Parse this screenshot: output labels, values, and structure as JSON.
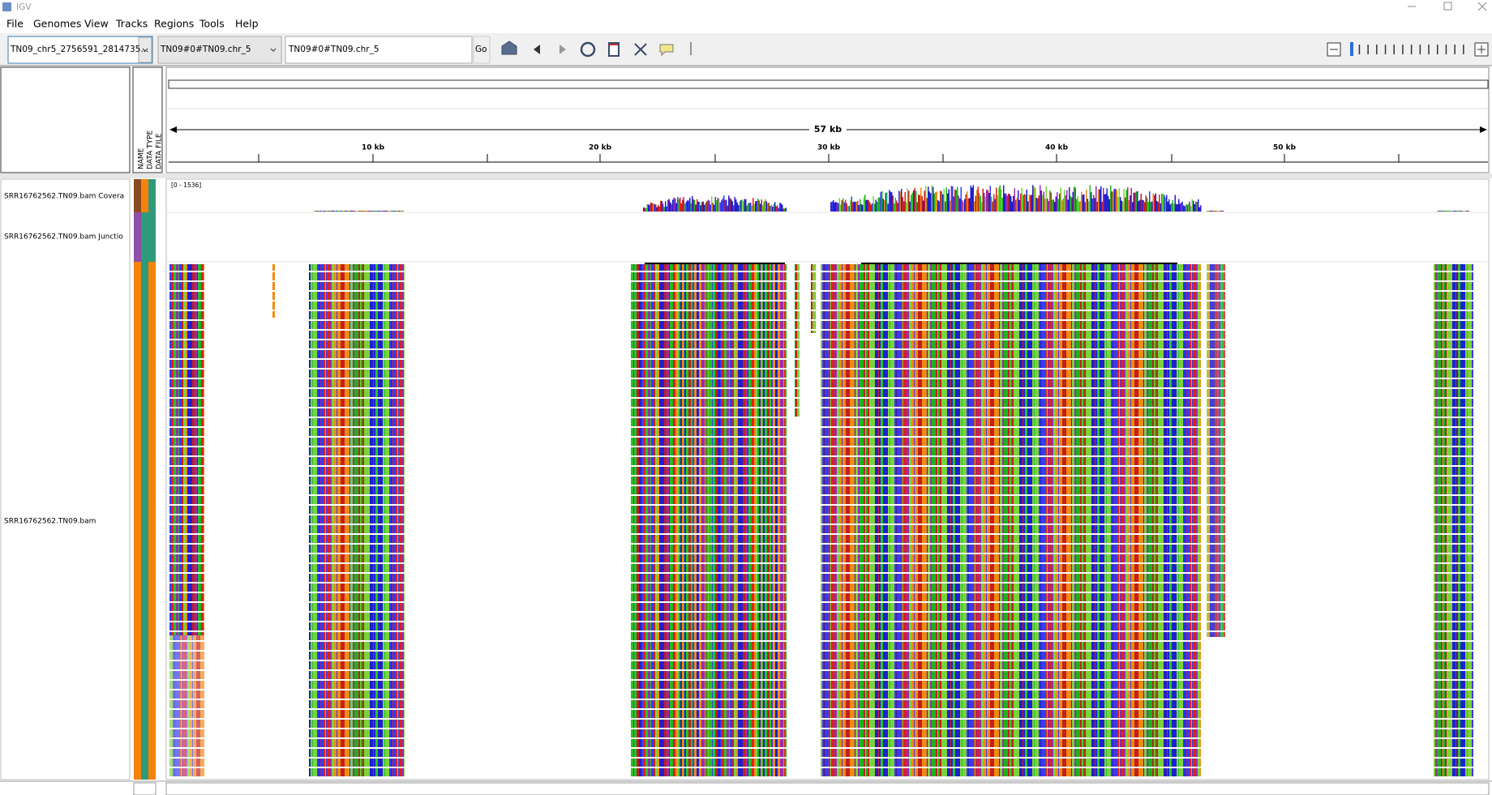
{
  "window": {
    "title": "IGV"
  },
  "menu": [
    "File",
    "Genomes",
    "View",
    "Tracks",
    "Regions",
    "Tools",
    "Help"
  ],
  "toolbar": {
    "locus_list": "TN09_chr5_2756591_2814735...",
    "genome": "TN09#0#TN09.chr_5",
    "locus": "TN09#0#TN09.chr_5",
    "go": "Go"
  },
  "header": {
    "attribute_columns": [
      "NAME",
      "DATA TYPE",
      "DATA FILE"
    ]
  },
  "ruler": {
    "span": "57 kb",
    "labels": [
      "10 kb",
      "20 kb",
      "30 kb",
      "40 kb",
      "50 kb"
    ]
  },
  "tracks": [
    {
      "name": "SRR16762562.TN09.bam Covera",
      "data_range": "[0 - 1536]"
    },
    {
      "name": "SRR16762562.TN09.bam Junctio"
    },
    {
      "name": "SRR16762562.TN09.bam"
    }
  ]
}
